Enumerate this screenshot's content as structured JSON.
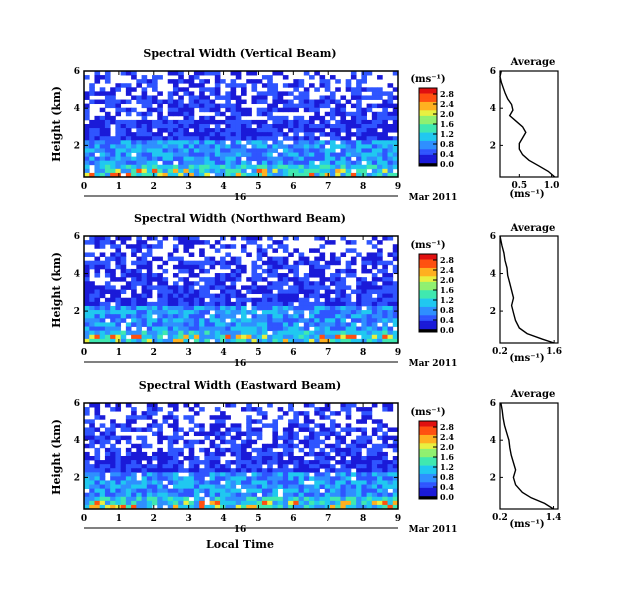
{
  "figure": {
    "xlabel": "Local Time",
    "date_label": "Mar 2011",
    "day_label": "16"
  },
  "colorbar": {
    "unit": "(ms⁻¹)",
    "ticks": [
      "2.8",
      "2.4",
      "2.0",
      "1.6",
      "1.2",
      "0.8",
      "0.4",
      "0.0"
    ]
  },
  "colors": {
    "scale": [
      "#000000",
      "#1a1ad8",
      "#2f55ff",
      "#2f8fff",
      "#20c8f0",
      "#40e8b0",
      "#90f070",
      "#e8f040",
      "#ffb020",
      "#ff5010",
      "#e01010"
    ]
  },
  "chart_data": [
    {
      "type": "heatmap",
      "title": "Spectral Width (Vertical Beam)",
      "xlabel": "",
      "ylabel": "Height (km)",
      "xlim": [
        0,
        9
      ],
      "ylim": [
        0.3,
        6
      ],
      "x_ticks": [
        "0",
        "1",
        "2",
        "3",
        "4",
        "5",
        "6",
        "7",
        "8",
        "9"
      ],
      "y_ticks": [
        "6",
        "4",
        "2"
      ],
      "colorbar_range": [
        0,
        2.8
      ],
      "profile": {
        "type": "line",
        "title": "Average",
        "xlabel": "(ms⁻¹)",
        "x_ticks": [
          "0.5",
          "1.0"
        ],
        "xlim": [
          0.2,
          1.1
        ],
        "y_ticks": [
          "6",
          "4",
          "2"
        ],
        "ylim": [
          0.3,
          6
        ],
        "points": [
          [
            1.05,
            0.3
          ],
          [
            0.95,
            0.6
          ],
          [
            0.8,
            0.9
          ],
          [
            0.65,
            1.2
          ],
          [
            0.55,
            1.5
          ],
          [
            0.5,
            1.8
          ],
          [
            0.5,
            2.1
          ],
          [
            0.55,
            2.4
          ],
          [
            0.6,
            2.7
          ],
          [
            0.55,
            3.0
          ],
          [
            0.45,
            3.3
          ],
          [
            0.35,
            3.6
          ],
          [
            0.4,
            3.9
          ],
          [
            0.38,
            4.2
          ],
          [
            0.32,
            4.5
          ],
          [
            0.28,
            4.8
          ],
          [
            0.25,
            5.1
          ],
          [
            0.22,
            5.4
          ],
          [
            0.2,
            5.7
          ],
          [
            0.22,
            6.0
          ]
        ]
      }
    },
    {
      "type": "heatmap",
      "title": "Spectral Width (Northward Beam)",
      "xlabel": "",
      "ylabel": "Height (km)",
      "xlim": [
        0,
        9
      ],
      "ylim": [
        0.3,
        6
      ],
      "x_ticks": [
        "0",
        "1",
        "2",
        "3",
        "4",
        "5",
        "6",
        "7",
        "8",
        "9"
      ],
      "y_ticks": [
        "6",
        "4",
        "2"
      ],
      "colorbar_range": [
        0,
        2.8
      ],
      "profile": {
        "type": "line",
        "title": "Average",
        "xlabel": "(ms⁻¹)",
        "x_ticks": [
          "0.2",
          "1.6"
        ],
        "xlim": [
          0.2,
          1.7
        ],
        "y_ticks": [
          "6",
          "4",
          "2"
        ],
        "ylim": [
          0.3,
          6
        ],
        "points": [
          [
            1.6,
            0.3
          ],
          [
            1.3,
            0.5
          ],
          [
            0.9,
            0.8
          ],
          [
            0.7,
            1.1
          ],
          [
            0.6,
            1.5
          ],
          [
            0.55,
            1.9
          ],
          [
            0.5,
            2.3
          ],
          [
            0.55,
            2.7
          ],
          [
            0.5,
            3.1
          ],
          [
            0.45,
            3.5
          ],
          [
            0.4,
            3.9
          ],
          [
            0.38,
            4.3
          ],
          [
            0.33,
            4.7
          ],
          [
            0.3,
            5.1
          ],
          [
            0.25,
            5.5
          ],
          [
            0.2,
            6.0
          ]
        ]
      }
    },
    {
      "type": "heatmap",
      "title": "Spectral Width (Eastward Beam)",
      "xlabel": "Local Time",
      "ylabel": "Height (km)",
      "xlim": [
        0,
        9
      ],
      "ylim": [
        0.3,
        6
      ],
      "x_ticks": [
        "0",
        "1",
        "2",
        "3",
        "4",
        "5",
        "6",
        "7",
        "8",
        "9"
      ],
      "y_ticks": [
        "6",
        "4",
        "2"
      ],
      "colorbar_range": [
        0,
        2.8
      ],
      "profile": {
        "type": "line",
        "title": "Average",
        "xlabel": "(ms⁻¹)",
        "x_ticks": [
          "0.2",
          "1.4"
        ],
        "xlim": [
          0.2,
          1.5
        ],
        "y_ticks": [
          "6",
          "4",
          "2"
        ],
        "ylim": [
          0.3,
          6
        ],
        "points": [
          [
            1.4,
            0.3
          ],
          [
            1.2,
            0.6
          ],
          [
            0.9,
            0.9
          ],
          [
            0.7,
            1.2
          ],
          [
            0.55,
            1.6
          ],
          [
            0.5,
            2.0
          ],
          [
            0.55,
            2.4
          ],
          [
            0.5,
            2.8
          ],
          [
            0.45,
            3.2
          ],
          [
            0.42,
            3.6
          ],
          [
            0.4,
            4.0
          ],
          [
            0.35,
            4.4
          ],
          [
            0.3,
            4.8
          ],
          [
            0.27,
            5.2
          ],
          [
            0.25,
            5.6
          ],
          [
            0.22,
            6.0
          ]
        ]
      }
    }
  ]
}
